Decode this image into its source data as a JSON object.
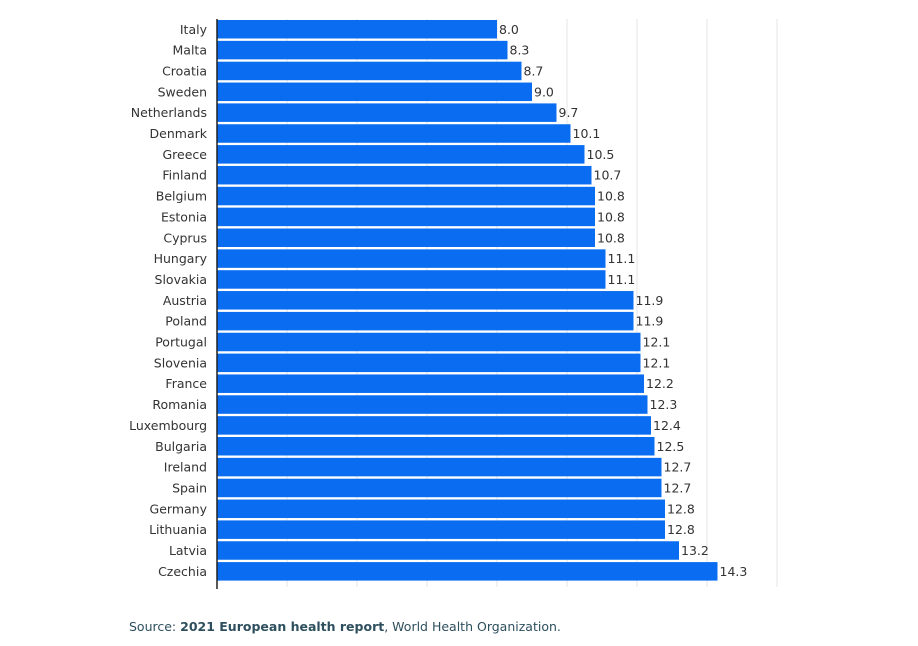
{
  "colors": {
    "bar": "#0a6cf0",
    "axis": "#222222",
    "gridline": "#e6e6e6",
    "text": "#333333",
    "source_text": "#2d4f5e"
  },
  "chart_data": {
    "type": "bar",
    "orientation": "horizontal",
    "title": "",
    "xlabel": "",
    "ylabel": "",
    "xlim": [
      0,
      16
    ],
    "grid": true,
    "categories": [
      "Italy",
      "Malta",
      "Croatia",
      "Sweden",
      "Netherlands",
      "Denmark",
      "Greece",
      "Finland",
      "Belgium",
      "Estonia",
      "Cyprus",
      "Hungary",
      "Slovakia",
      "Austria",
      "Poland",
      "Portugal",
      "Slovenia",
      "France",
      "Romania",
      "Luxembourg",
      "Bulgaria",
      "Ireland",
      "Spain",
      "Germany",
      "Lithuania",
      "Latvia",
      "Czechia"
    ],
    "values": [
      8.0,
      8.3,
      8.7,
      9.0,
      9.7,
      10.1,
      10.5,
      10.7,
      10.8,
      10.8,
      10.8,
      11.1,
      11.1,
      11.9,
      11.9,
      12.1,
      12.1,
      12.2,
      12.3,
      12.4,
      12.5,
      12.7,
      12.7,
      12.8,
      12.8,
      13.2,
      14.3
    ],
    "value_labels": [
      "8.0",
      "8.3",
      "8.7",
      "9.0",
      "9.7",
      "10.1",
      "10.5",
      "10.7",
      "10.8",
      "10.8",
      "10.8",
      "11.1",
      "11.1",
      "11.9",
      "11.9",
      "12.1",
      "12.1",
      "12.2",
      "12.3",
      "12.4",
      "12.5",
      "12.7",
      "12.7",
      "12.8",
      "12.8",
      "13.2",
      "14.3"
    ]
  },
  "source": {
    "prefix": "Source: ",
    "report": "2021 European health report",
    "suffix": ", World Health Organization."
  }
}
